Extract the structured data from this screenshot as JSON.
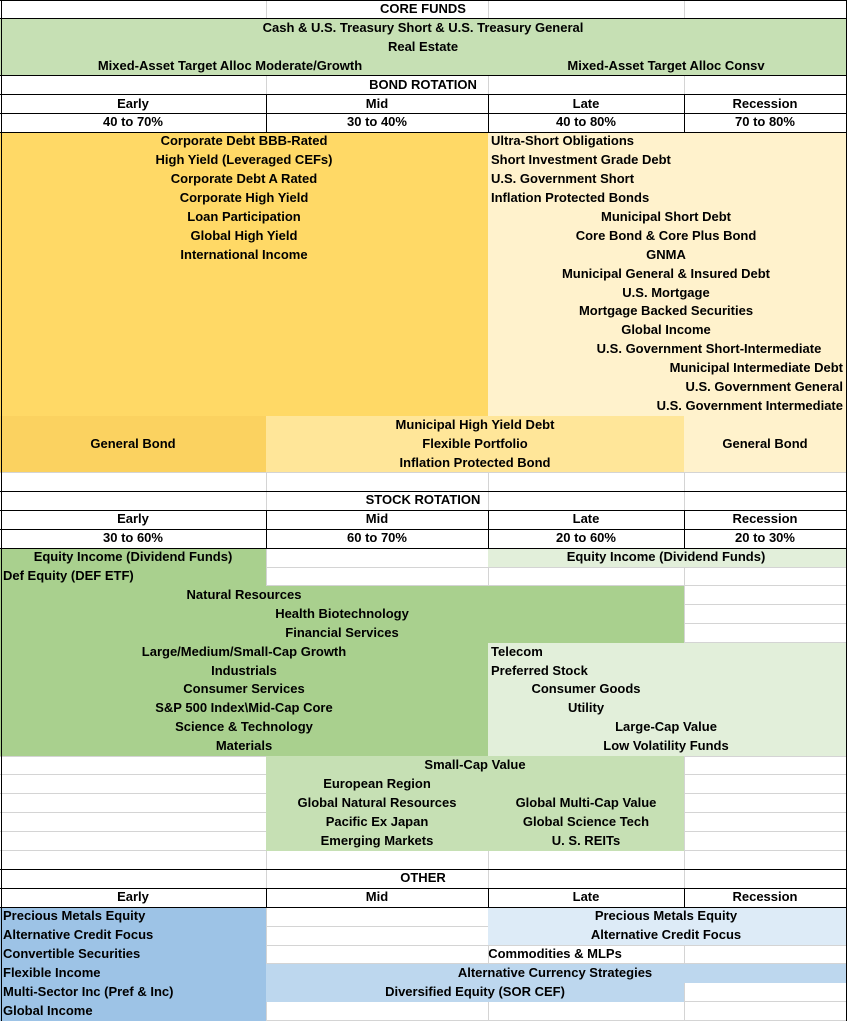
{
  "core_funds": {
    "title": "CORE FUNDS",
    "lines": [
      "Cash & U.S. Treasury Short & U.S. Treasury General",
      "Real Estate"
    ],
    "left": "Mixed-Asset Target Alloc Moderate/Growth",
    "right": "Mixed-Asset Target Alloc Consv"
  },
  "bond_rotation": {
    "title": "BOND ROTATION",
    "phases": [
      "Early",
      "Mid",
      "Late",
      "Recession"
    ],
    "ranges": [
      "40 to 70%",
      "30 to 40%",
      "40 to 80%",
      "70 to 80%"
    ],
    "early_mid_funds": [
      "Corporate Debt BBB-Rated",
      "High Yield (Leveraged CEFs)",
      "Corporate Debt A Rated",
      "Corporate High Yield",
      "Loan Participation",
      "Global High Yield",
      "International Income"
    ],
    "late_recession_funds": [
      "Ultra-Short Obligations",
      "Short Investment Grade Debt",
      "U.S. Government Short",
      "Inflation Protected Bonds",
      "Municipal Short Debt",
      "Core Bond & Core Plus Bond",
      "GNMA",
      "Municipal General & Insured Debt",
      "U.S. Mortgage",
      "Mortgage Backed Securities",
      "Global Income",
      "U.S. Government Short-Intermediate",
      "Municipal Intermediate Debt",
      "U.S. Government General",
      "U.S. Government Intermediate"
    ],
    "general_bond_left": "General Bond",
    "mid_late_funds": [
      "Municipal High Yield Debt",
      "Flexible Portfolio",
      "Inflation Protected Bond"
    ],
    "general_bond_right": "General Bond"
  },
  "stock_rotation": {
    "title": "STOCK ROTATION",
    "phases": [
      "Early",
      "Mid",
      "Late",
      "Recession"
    ],
    "ranges": [
      "30 to 60%",
      "60 to 70%",
      "20 to 60%",
      "20 to 30%"
    ],
    "equity_income_early": "Equity Income (Dividend Funds)",
    "equity_income_late": "Equity Income (Dividend Funds)",
    "def_equity": "Def Equity (DEF ETF)",
    "early_mid_funds": [
      "Natural Resources",
      "Health Biotechnology",
      "Financial Services",
      "Large/Medium/Small-Cap Growth",
      "Industrials",
      "Consumer Services",
      "S&P 500 Index\\Mid-Cap Core",
      "Science & Technology",
      "Materials"
    ],
    "late_funds": [
      "Telecom",
      "Preferred Stock",
      "Consumer Goods",
      "Utility",
      "Large-Cap Value",
      "Low Volatility Funds"
    ],
    "small_cap_title": "Small-Cap Value",
    "small_cap_left": [
      "European Region",
      "Global Natural Resources",
      "Pacific Ex Japan",
      "Emerging Markets"
    ],
    "small_cap_right": [
      "Global Multi-Cap Value",
      "Global Science Tech",
      "U. S. REITs"
    ]
  },
  "other": {
    "title": "OTHER",
    "phases": [
      "Early",
      "Mid",
      "Late",
      "Recession"
    ],
    "early_funds": [
      "Precious Metals Equity",
      "Alternative Credit Focus"
    ],
    "late_funds": [
      "Precious Metals Equity",
      "Alternative Credit Focus"
    ],
    "early_more": [
      "Convertible Securities",
      "Flexible Income",
      "Multi-Sector Inc (Pref & Inc)",
      "Global Income"
    ],
    "commodities": "Commodities & MLPs",
    "currency": "Alternative Currency Strategies",
    "diversified": "Diversified Equity (SOR CEF)"
  }
}
